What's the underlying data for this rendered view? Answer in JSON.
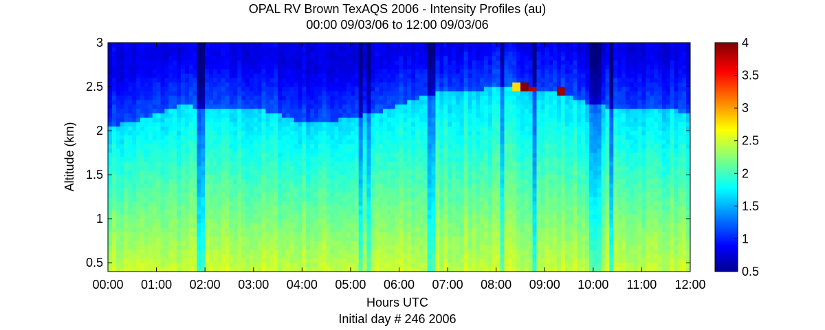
{
  "chart_data": {
    "type": "heatmap",
    "title": "OPAL RV Brown TexAQS 2006 - Intensity Profiles (au)",
    "subtitle": "00:00 09/03/06 to 12:00 09/03/06",
    "xlabel": "Hours UTC",
    "xlabel2": "Initial day # 246  2006",
    "ylabel": "Altitude (km)",
    "x_tick_labels": [
      "00:00",
      "01:00",
      "02:00",
      "03:00",
      "04:00",
      "05:00",
      "06:00",
      "07:00",
      "08:00",
      "09:00",
      "10:00",
      "11:00",
      "12:00"
    ],
    "xlim_hours": [
      0,
      12
    ],
    "y_ticks": [
      0.5,
      1,
      1.5,
      2,
      2.5,
      3
    ],
    "y_tick_labels": [
      "0.5",
      "1",
      "1.5",
      "2",
      "2.5",
      "3"
    ],
    "ylim": [
      0.4,
      3.0
    ],
    "colorbar": {
      "ticks": [
        0.5,
        1,
        1.5,
        2,
        2.5,
        3,
        3.5,
        4
      ],
      "tick_labels": [
        "0.5",
        "1",
        "1.5",
        "2",
        "2.5",
        "3",
        "3.5",
        "4"
      ],
      "clim": [
        0.5,
        4
      ],
      "colormap": "jet"
    },
    "mixed_layer_top_km": {
      "hours": [
        0,
        0.5,
        1,
        1.5,
        2,
        2.5,
        3,
        3.5,
        4,
        4.5,
        5,
        5.5,
        6,
        6.5,
        7,
        7.5,
        8,
        8.5,
        9,
        9.5,
        10,
        10.5,
        11,
        11.5,
        12
      ],
      "values": [
        2.05,
        2.1,
        2.2,
        2.3,
        2.25,
        2.25,
        2.25,
        2.2,
        2.1,
        2.1,
        2.15,
        2.2,
        2.3,
        2.4,
        2.45,
        2.45,
        2.5,
        2.5,
        2.45,
        2.4,
        2.3,
        2.25,
        2.25,
        2.25,
        2.2
      ]
    },
    "intensity_peaks": [
      {
        "hour": 8.6,
        "altitude_km": 2.5,
        "value": 4.0
      },
      {
        "hour": 8.75,
        "altitude_km": 2.48,
        "value": 3.8
      },
      {
        "hour": 9.35,
        "altitude_km": 2.45,
        "value": 3.9
      },
      {
        "hour": 8.4,
        "altitude_km": 2.5,
        "value": 2.8
      }
    ],
    "dropout_hours": [
      1.92,
      5.2,
      5.35,
      6.6,
      6.7,
      8.1,
      8.8,
      10.0,
      10.1,
      10.4
    ]
  }
}
